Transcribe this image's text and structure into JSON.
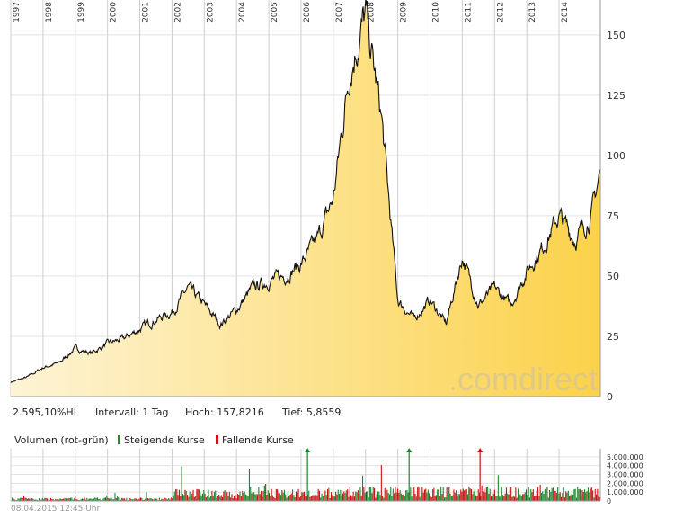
{
  "chart_data": [
    {
      "type": "area",
      "years": [
        "1997",
        "1998",
        "1999",
        "2000",
        "2001",
        "2002",
        "2003",
        "2004",
        "2005",
        "2006",
        "2007",
        "2008",
        "2009",
        "2010",
        "2011",
        "2012",
        "2013",
        "2014"
      ],
      "x": [
        "1997-01",
        "1997-07",
        "1998-01",
        "1998-07",
        "1999-01",
        "1999-07",
        "2000-01",
        "2000-07",
        "2001-01",
        "2001-07",
        "2002-01",
        "2002-07",
        "2003-01",
        "2003-07",
        "2004-01",
        "2004-07",
        "2005-01",
        "2005-07",
        "2006-01",
        "2006-07",
        "2007-01",
        "2007-07",
        "2008-01",
        "2008-07",
        "2009-01",
        "2009-07",
        "2010-01",
        "2010-07",
        "2011-01",
        "2011-07",
        "2012-01",
        "2012-07",
        "2013-01",
        "2013-07",
        "2014-01",
        "2014-07",
        "2015-01",
        "2015-04"
      ],
      "values": [
        6,
        8,
        12,
        14,
        20,
        18,
        22,
        24,
        28,
        32,
        35,
        45,
        38,
        30,
        36,
        45,
        48,
        50,
        55,
        65,
        82,
        135,
        158,
        115,
        40,
        32,
        40,
        30,
        58,
        38,
        45,
        38,
        52,
        62,
        75,
        65,
        75,
        92
      ],
      "y_ticks": [
        0,
        25,
        50,
        75,
        100,
        125,
        150
      ],
      "ylim": [
        0,
        160
      ],
      "grid": true,
      "watermark": ".comdirect",
      "stats": {
        "change": "2.595,10%HL",
        "interval": "Intervall: 1 Tag",
        "high": "Hoch: 157,8216",
        "low": "Tief: 5,8559"
      }
    },
    {
      "type": "bar",
      "title": "Volumen (rot-grün)",
      "legend": [
        {
          "name": "Steigende Kurse",
          "color": "#1a8a2e"
        },
        {
          "name": "Fallende Kurse",
          "color": "#cc1111"
        }
      ],
      "y_ticks": [
        "0",
        "1.000.000",
        "2.000.000",
        "3.000.000",
        "4.000.000",
        "5.000.000"
      ],
      "ylim": [
        0,
        5500000
      ]
    }
  ],
  "timestamp": "08.04.2015 12:45 Uhr"
}
